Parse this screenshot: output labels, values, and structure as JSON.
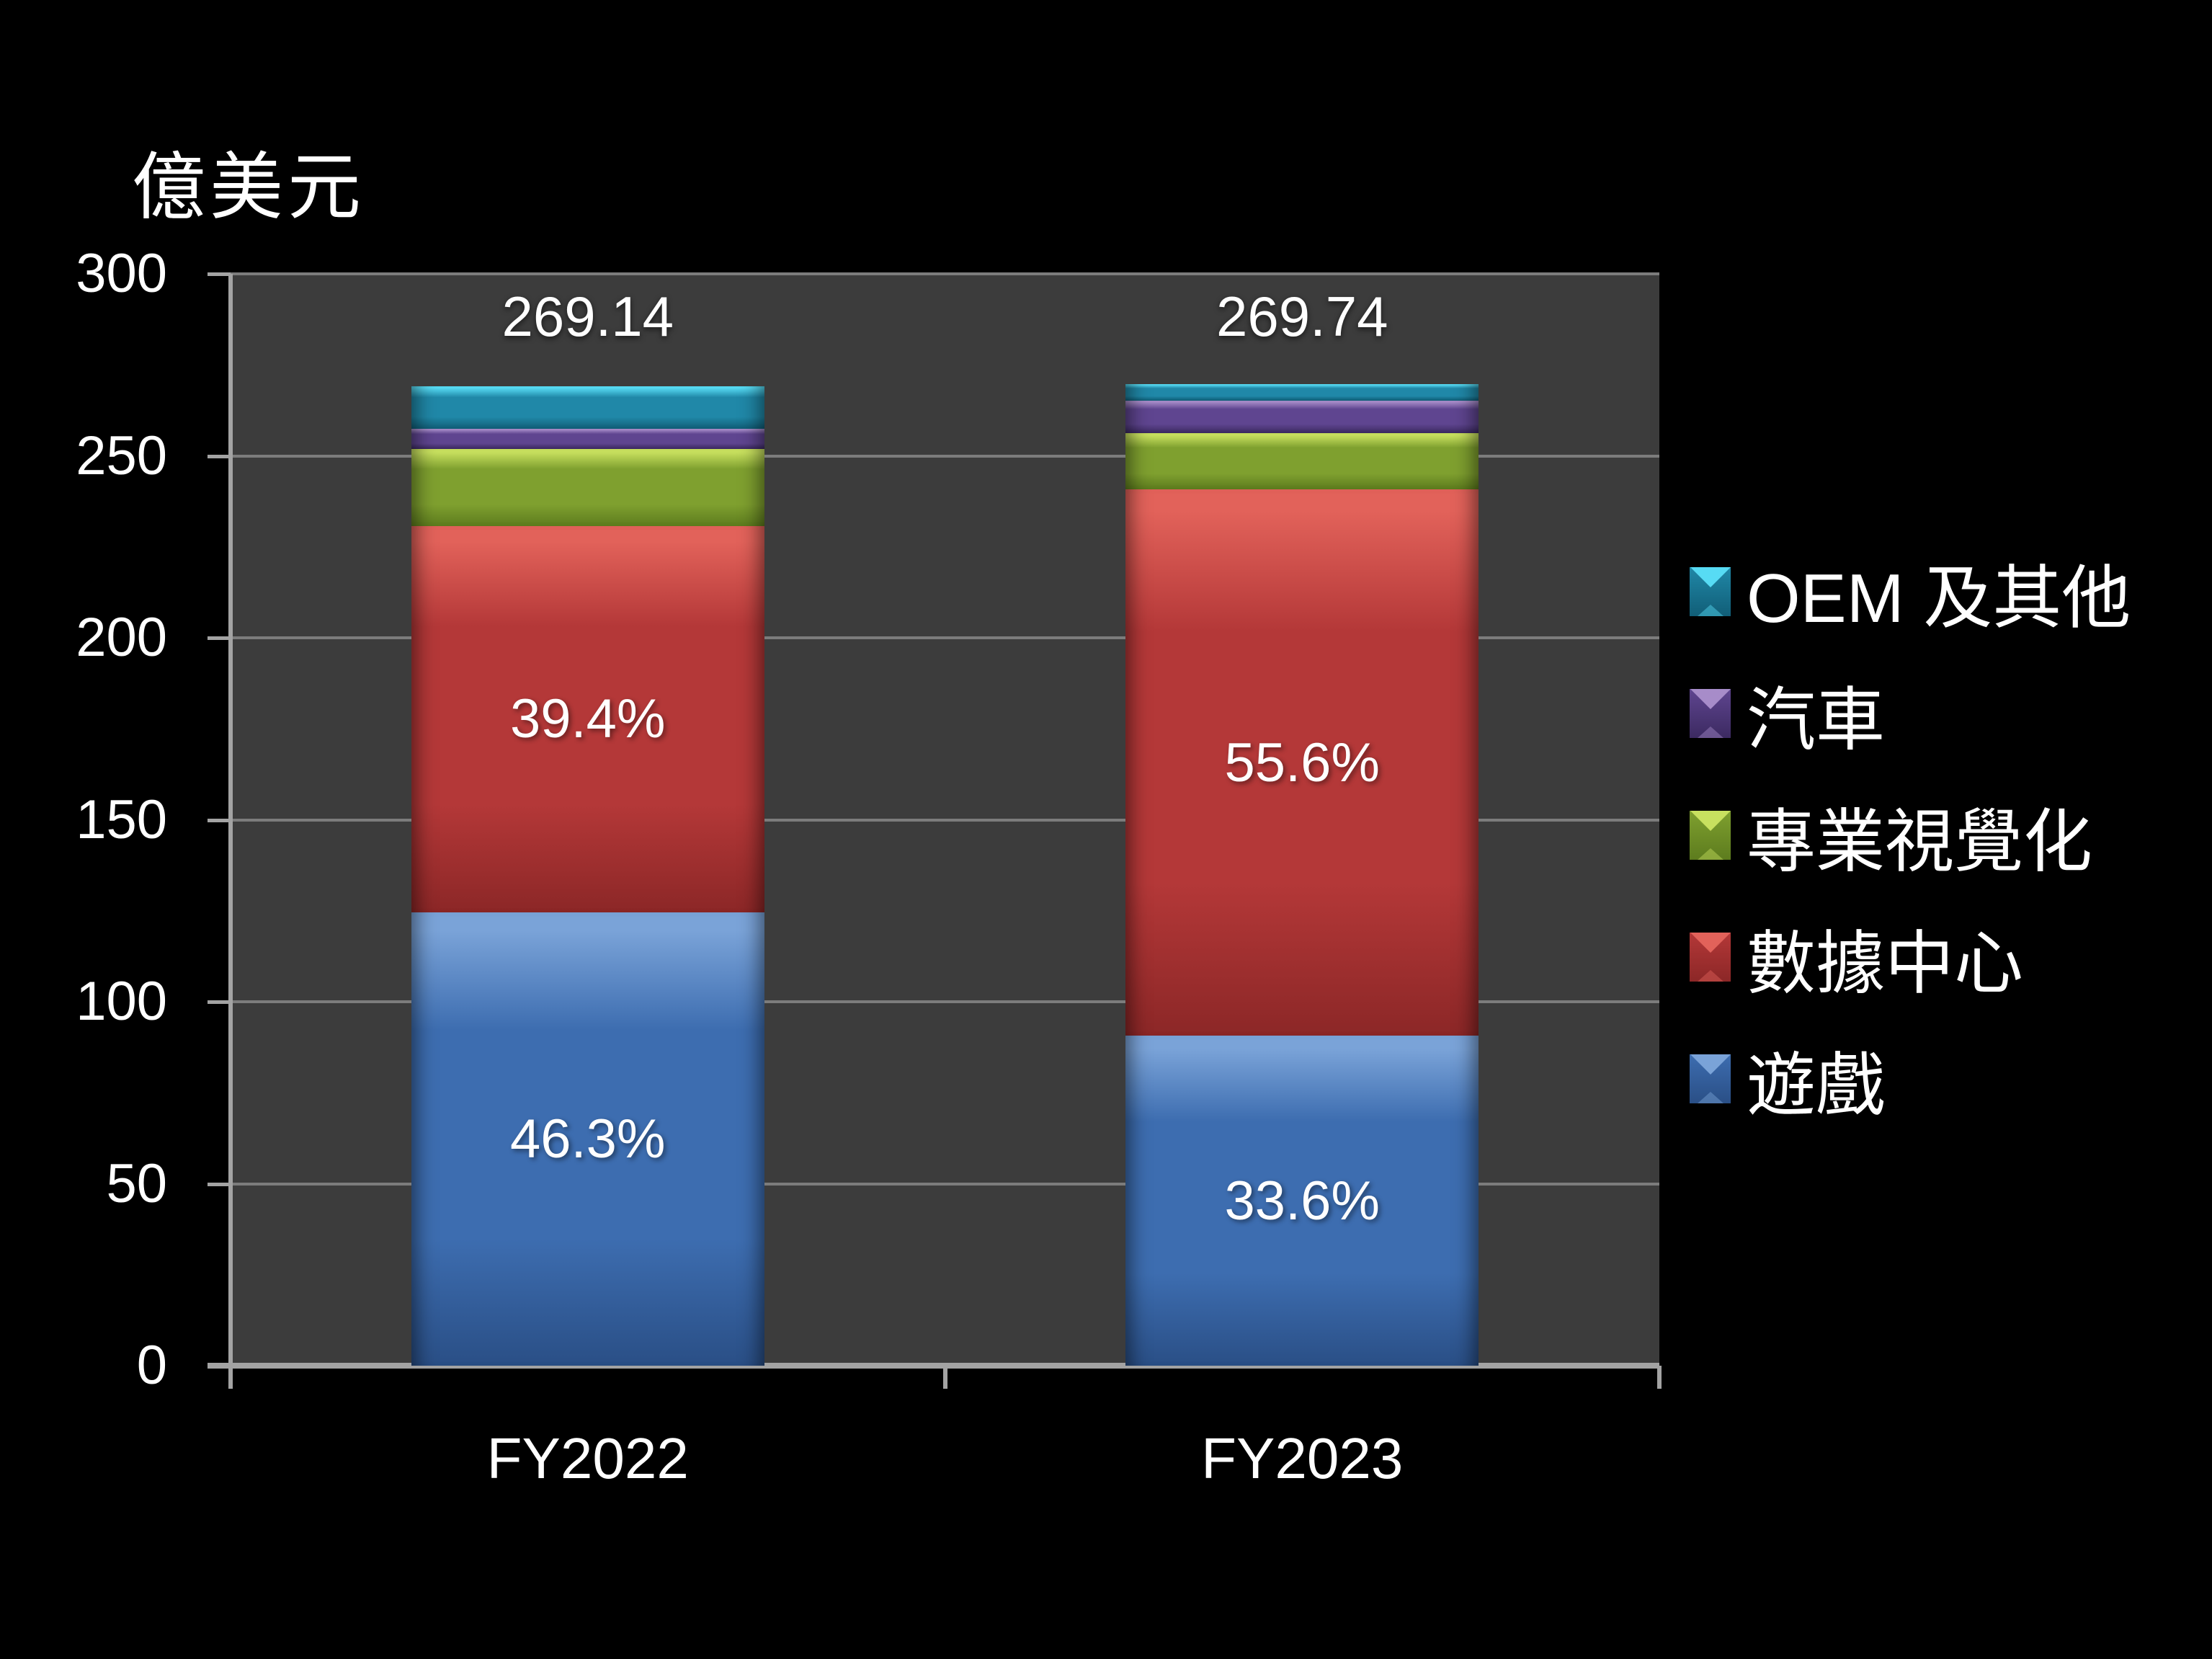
{
  "title": "億美元",
  "y_axis": {
    "ticks": [
      "300",
      "250",
      "200",
      "150",
      "100",
      "50",
      "0"
    ]
  },
  "x_axis": {
    "categories": [
      "FY2022",
      "FY2023"
    ]
  },
  "totals": [
    "269.14",
    "269.74"
  ],
  "legend": {
    "items": [
      {
        "label": "OEM 及其他",
        "color": "#2088a8"
      },
      {
        "label": "汽車",
        "color": "#5f4590"
      },
      {
        "label": "專業視覺化",
        "color": "#7fa02f"
      },
      {
        "label": "數據中心",
        "color": "#b43838"
      },
      {
        "label": "遊戲",
        "color": "#3d6db0"
      }
    ]
  },
  "chart_data": {
    "type": "bar",
    "stacked": true,
    "title": "億美元",
    "ylabel": "億美元",
    "xlabel": "",
    "categories": [
      "FY2022",
      "FY2023"
    ],
    "ylim": [
      0,
      300
    ],
    "y_tick_step": 50,
    "grid": true,
    "legend_position": "right",
    "plot_background": "#3c3c3c",
    "page_background": "#000000",
    "totals": [
      "269.14",
      "269.74"
    ],
    "series": [
      {
        "name": "遊戲",
        "color": "#3d6db0",
        "color_light": "#7aa3d8",
        "color_dark": "#2a4f86",
        "values": [
          124.62,
          90.67
        ],
        "data_labels": [
          "46.3%",
          "33.6%"
        ]
      },
      {
        "name": "數據中心",
        "color": "#b43838",
        "color_light": "#e2625a",
        "color_dark": "#8c2727",
        "values": [
          106.13,
          150.05
        ],
        "data_labels": [
          "39.4%",
          "55.6%"
        ]
      },
      {
        "name": "專業視覺化",
        "color": "#7fa02f",
        "color_light": "#c8e05f",
        "color_dark": "#5d7c1e",
        "values": [
          21.11,
          15.44
        ],
        "data_labels": [
          "",
          ""
        ]
      },
      {
        "name": "汽車",
        "color": "#5f4590",
        "color_light": "#a78cc9",
        "color_dark": "#3c2a61",
        "values": [
          5.66,
          9.03
        ],
        "data_labels": [
          "",
          ""
        ]
      },
      {
        "name": "OEM 及其他",
        "color": "#2088a8",
        "color_light": "#57dbf4",
        "color_dark": "#115e77",
        "values": [
          11.62,
          4.55
        ],
        "data_labels": [
          "",
          ""
        ]
      }
    ]
  }
}
